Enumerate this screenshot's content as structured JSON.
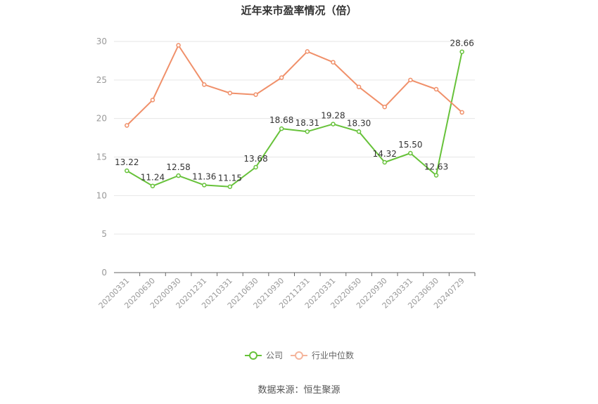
{
  "chart_data": {
    "type": "line",
    "title": "近年来市盈率情况（倍）",
    "categories": [
      "20200331",
      "20200630",
      "20200930",
      "20201231",
      "20210331",
      "20210630",
      "20210930",
      "20211231",
      "20220331",
      "20220630",
      "20220930",
      "20230331",
      "20230630",
      "20240729"
    ],
    "series": [
      {
        "name": "公司",
        "color": "#67c23a",
        "values": [
          13.22,
          11.24,
          12.58,
          11.36,
          11.15,
          13.68,
          18.68,
          18.31,
          19.28,
          18.3,
          14.32,
          15.5,
          12.63,
          28.66
        ],
        "labels": [
          "13.22",
          "11.24",
          "12.58",
          "11.36",
          "11.15",
          "13.68",
          "18.68",
          "18.31",
          "19.28",
          "18.30",
          "14.32",
          "15.50",
          "12.63",
          "28.66"
        ]
      },
      {
        "name": "行业中位数",
        "color": "#f0906a",
        "values": [
          19.1,
          22.4,
          29.5,
          24.4,
          23.3,
          23.1,
          25.3,
          28.7,
          27.3,
          24.1,
          21.5,
          25.0,
          23.8,
          20.8
        ]
      }
    ],
    "yticks": [
      "0",
      "5",
      "10",
      "15",
      "20",
      "25",
      "30"
    ],
    "ylim": [
      0,
      30
    ],
    "grid": true,
    "legend": "bottom-center"
  },
  "source": "数据来源：恒生聚源"
}
